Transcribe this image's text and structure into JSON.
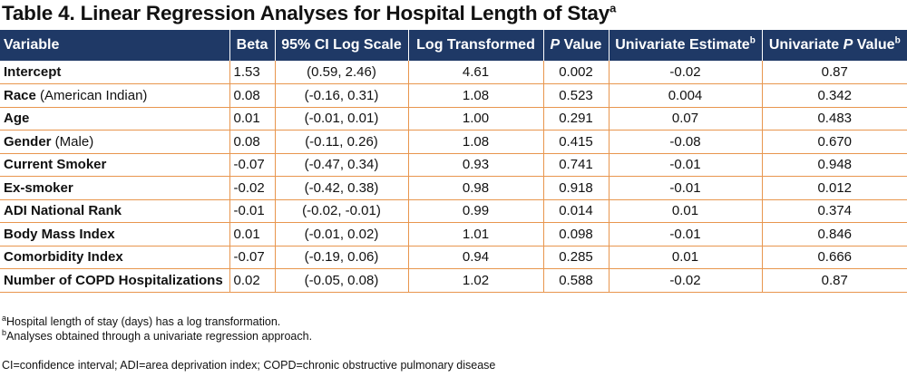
{
  "title": "Table 4. Linear Regression Analyses for Hospital Length of Stay",
  "title_sup": "a",
  "headers": {
    "variable": "Variable",
    "beta": "Beta",
    "ci": "95% CI Log Scale",
    "log": "Log Transformed",
    "p_italic": "P",
    "p_rest": " Value",
    "uni_est": "Univariate Estimate",
    "uni_est_sup": "b",
    "uni_p_pre": "Univariate ",
    "uni_p_italic": "P",
    "uni_p_rest": " Value",
    "uni_p_sup": "b"
  },
  "rows": [
    {
      "var_bold": "Intercept",
      "var_rest": "",
      "beta": "1.53",
      "ci": "(0.59, 2.46)",
      "log": "4.61",
      "p": "0.002",
      "uni_est": "-0.02",
      "uni_p": "0.87"
    },
    {
      "var_bold": "Race",
      "var_rest": " (American Indian)",
      "beta": "0.08",
      "ci": "(-0.16, 0.31)",
      "log": "1.08",
      "p": "0.523",
      "uni_est": "0.004",
      "uni_p": "0.342"
    },
    {
      "var_bold": "Age",
      "var_rest": "",
      "beta": "0.01",
      "ci": "(-0.01, 0.01)",
      "log": "1.00",
      "p": "0.291",
      "uni_est": "0.07",
      "uni_p": "0.483"
    },
    {
      "var_bold": "Gender",
      "var_rest": " (Male)",
      "beta": "0.08",
      "ci": "(-0.11, 0.26)",
      "log": "1.08",
      "p": "0.415",
      "uni_est": "-0.08",
      "uni_p": "0.670"
    },
    {
      "var_bold": "Current Smoker",
      "var_rest": "",
      "beta": "-0.07",
      "ci": "(-0.47, 0.34)",
      "log": "0.93",
      "p": "0.741",
      "uni_est": "-0.01",
      "uni_p": "0.948"
    },
    {
      "var_bold": "Ex-smoker",
      "var_rest": "",
      "beta": "-0.02",
      "ci": "(-0.42, 0.38)",
      "log": "0.98",
      "p": "0.918",
      "uni_est": "-0.01",
      "uni_p": "0.012"
    },
    {
      "var_bold": "ADI National Rank",
      "var_rest": "",
      "beta": "-0.01",
      "ci": "(-0.02,  -0.01)",
      "log": "0.99",
      "p": "0.014",
      "uni_est": "0.01",
      "uni_p": "0.374"
    },
    {
      "var_bold": "Body Mass Index",
      "var_rest": "",
      "beta": "0.01",
      "ci": "(-0.01, 0.02)",
      "log": "1.01",
      "p": "0.098",
      "uni_est": "-0.01",
      "uni_p": "0.846"
    },
    {
      "var_bold": "Comorbidity Index",
      "var_rest": "",
      "beta": "-0.07",
      "ci": "(-0.19, 0.06)",
      "log": "0.94",
      "p": "0.285",
      "uni_est": "0.01",
      "uni_p": "0.666"
    },
    {
      "var_bold": "Number of COPD Hospitalizations",
      "var_rest": "",
      "beta": "0.02",
      "ci": "(-0.05, 0.08)",
      "log": "1.02",
      "p": "0.588",
      "uni_est": "-0.02",
      "uni_p": "0.87"
    }
  ],
  "footnotes": [
    {
      "sup": "a",
      "text": "Hospital length of stay (days) has a log transformation."
    },
    {
      "sup": "b",
      "text": "Analyses obtained through a univariate regression approach."
    }
  ],
  "abbreviations": "CI=confidence interval; ADI=area deprivation index; COPD=chronic obstructive pulmonary disease"
}
